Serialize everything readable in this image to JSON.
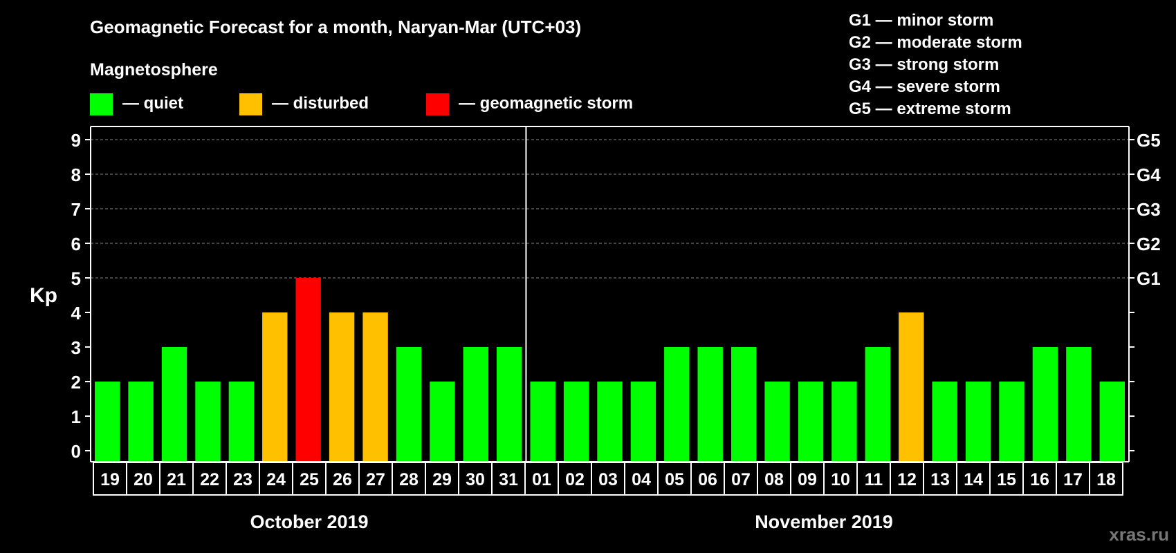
{
  "chart_data": {
    "type": "bar",
    "title": "Geomagnetic Forecast for a month, Naryan-Mar (UTC+03)",
    "subtitle": "Magnetosphere",
    "ylabel": "Kp",
    "ylim": [
      0,
      9
    ],
    "yticks": [
      "0",
      "1",
      "2",
      "3",
      "4",
      "5",
      "6",
      "7",
      "8",
      "9"
    ],
    "right_axis_labels": [
      {
        "kp": 5,
        "label": "G1"
      },
      {
        "kp": 6,
        "label": "G2"
      },
      {
        "kp": 7,
        "label": "G3"
      },
      {
        "kp": 8,
        "label": "G4"
      },
      {
        "kp": 9,
        "label": "G5"
      }
    ],
    "categories": [
      "19",
      "20",
      "21",
      "22",
      "23",
      "24",
      "25",
      "26",
      "27",
      "28",
      "29",
      "30",
      "31",
      "01",
      "02",
      "03",
      "04",
      "05",
      "06",
      "07",
      "08",
      "09",
      "10",
      "11",
      "12",
      "13",
      "14",
      "15",
      "16",
      "17",
      "18"
    ],
    "values": [
      2,
      2,
      3,
      2,
      2,
      4,
      5,
      4,
      4,
      3,
      2,
      3,
      3,
      2,
      2,
      2,
      2,
      3,
      3,
      3,
      2,
      2,
      2,
      3,
      4,
      2,
      2,
      2,
      3,
      3,
      2
    ],
    "months": [
      {
        "label": "October 2019",
        "count": 13
      },
      {
        "label": "November 2019",
        "count": 18
      }
    ],
    "legend": [
      {
        "label": "— quiet",
        "color": "#00ff00"
      },
      {
        "label": "— disturbed",
        "color": "#ffc000"
      },
      {
        "label": "— geomagnetic storm",
        "color": "#ff0000"
      }
    ],
    "storm_scale": [
      "G1 — minor storm",
      "G2 — moderate storm",
      "G3 — strong storm",
      "G4 — severe storm",
      "G5 — extreme storm"
    ],
    "grid": true
  },
  "watermark": "xras.ru",
  "colors": {
    "quiet": "#00ff00",
    "disturbed": "#ffc000",
    "storm": "#ff0000",
    "background": "#000000",
    "grid": "#888888"
  }
}
